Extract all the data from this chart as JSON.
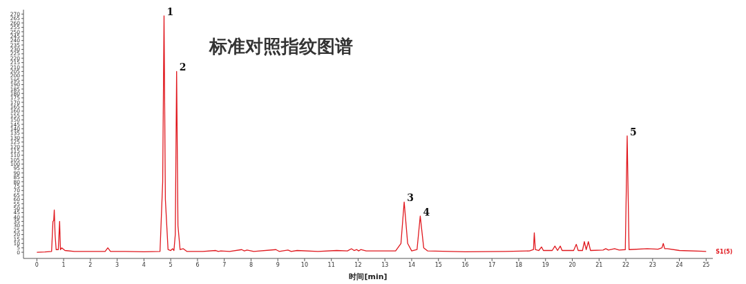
{
  "chart_data": {
    "type": "line",
    "title": "标准对照指纹图谱",
    "xlabel": "时间[min]",
    "x": [
      0,
      0.3,
      0.55,
      0.6,
      0.63,
      0.65,
      0.68,
      0.72,
      0.8,
      0.85,
      0.88,
      0.93,
      0.97,
      1.05,
      1.4,
      2.0,
      2.55,
      2.65,
      2.75,
      3.3,
      4.0,
      4.6,
      4.7,
      4.75,
      4.8,
      4.9,
      5.0,
      5.07,
      5.12,
      5.17,
      5.22,
      5.27,
      5.35,
      5.47,
      5.6,
      6.2,
      6.68,
      6.78,
      6.87,
      7.2,
      7.65,
      7.75,
      7.85,
      8.1,
      8.93,
      9.05,
      9.38,
      9.5,
      9.72,
      10.5,
      11.2,
      11.6,
      11.75,
      11.85,
      11.95,
      12.02,
      12.1,
      12.3,
      13.4,
      13.6,
      13.72,
      13.85,
      14.0,
      14.2,
      14.32,
      14.45,
      14.6,
      16.0,
      17.5,
      18.4,
      18.55,
      18.58,
      18.62,
      18.75,
      18.85,
      18.92,
      19.25,
      19.35,
      19.45,
      19.55,
      19.62,
      20.05,
      20.15,
      20.22,
      20.38,
      20.45,
      20.52,
      20.6,
      20.68,
      21.15,
      21.25,
      21.35,
      21.58,
      21.75,
      21.98,
      22.05,
      22.12,
      22.8,
      23.2,
      23.35,
      23.4,
      23.45,
      23.55,
      24.0,
      25.0
    ],
    "series": [
      {
        "name": "S1(5)",
        "color": "#e0161c",
        "values": [
          0,
          0.3,
          1,
          35,
          36,
          48,
          20,
          3,
          3,
          35,
          3,
          5,
          4,
          2,
          1,
          1,
          1,
          5,
          1,
          1,
          0.5,
          1,
          80,
          268,
          60,
          3,
          2,
          4,
          2,
          20,
          205,
          30,
          3,
          4,
          1,
          1,
          2,
          1,
          1.5,
          1,
          3,
          1.5,
          2.5,
          1,
          3,
          1,
          2.5,
          1,
          2,
          1,
          2,
          1.5,
          4,
          2,
          3,
          1.5,
          3,
          1.5,
          1.5,
          10,
          57,
          10,
          1.5,
          3,
          41,
          5,
          1.5,
          0.5,
          1,
          1.5,
          3,
          22,
          3,
          2,
          6,
          2,
          2,
          7,
          2,
          7,
          2,
          2,
          9,
          2,
          2,
          12,
          3,
          12,
          2,
          2.5,
          4,
          2.5,
          4,
          2.5,
          3,
          132,
          3,
          4,
          3.5,
          5,
          10,
          4,
          4,
          2,
          1
        ]
      }
    ],
    "xlim": [
      -0.5,
      25.25
    ],
    "ylim": [
      -7,
      275
    ],
    "xticks": [
      0,
      1,
      2,
      3,
      4,
      5,
      6,
      7,
      8,
      9,
      10,
      11,
      12,
      13,
      14,
      15,
      16,
      17,
      18,
      19,
      20,
      21,
      22,
      23,
      24,
      25
    ],
    "yticks": [
      0,
      5,
      10,
      15,
      20,
      25,
      30,
      35,
      40,
      45,
      50,
      55,
      60,
      65,
      70,
      75,
      80,
      85,
      90,
      95,
      100,
      105,
      110,
      115,
      120,
      125,
      130,
      135,
      140,
      145,
      150,
      155,
      160,
      165,
      170,
      175,
      180,
      185,
      190,
      195,
      200,
      205,
      210,
      215,
      220,
      225,
      230,
      235,
      240,
      245,
      250,
      255,
      260,
      265,
      270
    ],
    "annotations": [
      {
        "text": "1",
        "x": 4.75,
        "y": 268
      },
      {
        "text": "2",
        "x": 5.22,
        "y": 205
      },
      {
        "text": "3",
        "x": 13.72,
        "y": 57
      },
      {
        "text": "4",
        "x": 14.32,
        "y": 41
      },
      {
        "text": "5",
        "x": 22.05,
        "y": 132
      }
    ],
    "grid": false,
    "legend": false,
    "marker": "none",
    "line_style": "solid"
  }
}
